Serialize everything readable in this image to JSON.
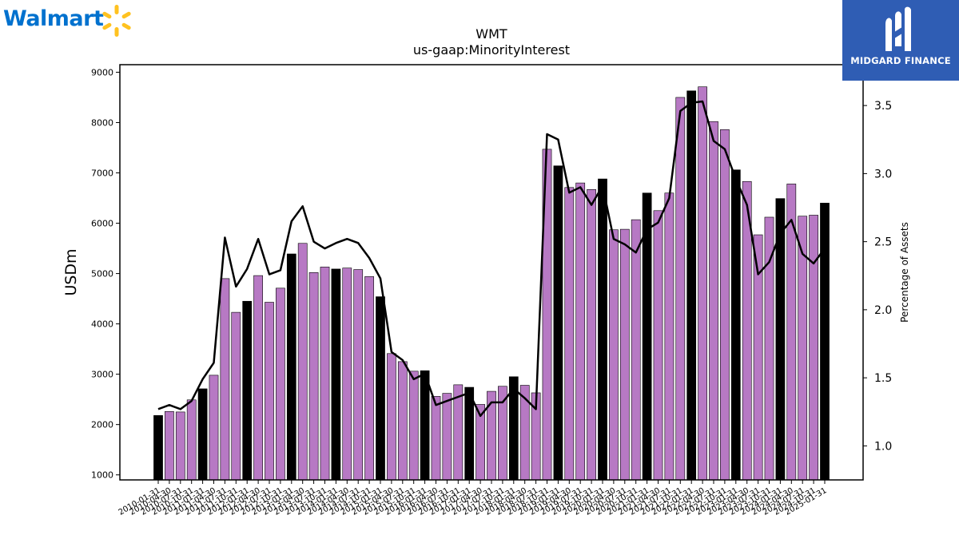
{
  "logos": {
    "walmart_text": "Walmart",
    "midgard_text": "MIDGARD FINANCE"
  },
  "colors": {
    "bar_quarter": "#b779c4",
    "bar_fiscal_year_end": "#000000",
    "line": "#000000",
    "walmart_blue": "#0071ce",
    "walmart_spark": "#ffc220",
    "midgard_bg": "#2f5db4"
  },
  "chart_data": {
    "type": "bar",
    "title": "WMT",
    "subtitle": "us-gaap:MinorityInterest",
    "ylabel": "USDm",
    "y2label": "Percentage of Assets",
    "ylim": [
      900,
      9150
    ],
    "y2lim": [
      0.75,
      3.8
    ],
    "yticks": [
      1000,
      2000,
      3000,
      4000,
      5000,
      6000,
      7000,
      8000,
      9000
    ],
    "y2ticks": [
      1.0,
      1.5,
      2.0,
      2.5,
      3.0,
      3.5
    ],
    "categories": [
      "2010-01-31",
      "2010-04-30",
      "2010-07-31",
      "2010-10-31",
      "2011-01-31",
      "2011-04-30",
      "2011-07-31",
      "2011-10-31",
      "2012-01-31",
      "2012-04-30",
      "2012-07-31",
      "2012-10-31",
      "2013-01-31",
      "2013-04-30",
      "2013-07-31",
      "2013-10-31",
      "2014-01-31",
      "2014-04-30",
      "2014-07-31",
      "2014-10-31",
      "2015-01-31",
      "2015-04-30",
      "2015-07-31",
      "2015-10-31",
      "2016-01-31",
      "2016-04-30",
      "2016-07-31",
      "2016-10-31",
      "2017-01-31",
      "2017-04-30",
      "2017-07-31",
      "2017-10-31",
      "2018-01-31",
      "2018-04-30",
      "2018-07-31",
      "2018-10-31",
      "2019-01-31",
      "2019-04-30",
      "2019-07-31",
      "2019-10-31",
      "2020-01-31",
      "2020-04-30",
      "2020-07-31",
      "2020-10-31",
      "2021-01-31",
      "2021-04-30",
      "2021-07-31",
      "2021-10-31",
      "2022-01-31",
      "2022-04-30",
      "2022-07-31",
      "2022-10-31",
      "2023-01-31",
      "2023-04-30",
      "2023-07-31",
      "2023-10-31",
      "2024-01-31",
      "2024-04-30",
      "2024-07-31",
      "2024-10-31",
      "2025-01-31"
    ],
    "fiscal_year_end": [
      true,
      false,
      false,
      false,
      true,
      false,
      false,
      false,
      true,
      false,
      false,
      false,
      true,
      false,
      false,
      false,
      true,
      false,
      false,
      false,
      true,
      false,
      false,
      false,
      true,
      false,
      false,
      false,
      true,
      false,
      false,
      false,
      true,
      false,
      false,
      false,
      true,
      false,
      false,
      false,
      true,
      false,
      false,
      false,
      true,
      false,
      false,
      false,
      true,
      false,
      false,
      false,
      true,
      false,
      false,
      false,
      true,
      false,
      false,
      false,
      true
    ],
    "values": [
      2180,
      2260,
      2250,
      2490,
      2710,
      2980,
      4900,
      4230,
      4450,
      4960,
      4430,
      4710,
      5390,
      5600,
      5020,
      5130,
      5090,
      5110,
      5080,
      4940,
      4540,
      3410,
      3250,
      3060,
      3070,
      2560,
      2620,
      2790,
      2740,
      2400,
      2660,
      2760,
      2950,
      2780,
      2630,
      7470,
      7140,
      6710,
      6800,
      6670,
      6880,
      5870,
      5880,
      6070,
      6600,
      6250,
      6600,
      8500,
      8630,
      8710,
      8020,
      7860,
      7060,
      6830,
      5770,
      6120,
      6490,
      6780,
      6140,
      6160,
      6400
    ],
    "series": [
      {
        "type": "line",
        "axis": "right",
        "values": [
          1.27,
          1.3,
          1.27,
          1.33,
          1.49,
          1.61,
          2.53,
          2.17,
          2.3,
          2.52,
          2.26,
          2.29,
          2.65,
          2.76,
          2.5,
          2.45,
          2.49,
          2.52,
          2.49,
          2.38,
          2.23,
          1.69,
          1.63,
          1.49,
          1.53,
          1.3,
          1.33,
          1.36,
          1.39,
          1.22,
          1.32,
          1.32,
          1.42,
          1.35,
          1.27,
          3.29,
          3.25,
          2.86,
          2.9,
          2.77,
          2.91,
          2.52,
          2.48,
          2.42,
          2.59,
          2.64,
          2.82,
          3.46,
          3.52,
          3.53,
          3.24,
          3.18,
          2.96,
          2.77,
          2.26,
          2.35,
          2.56,
          2.66,
          2.41,
          2.34,
          2.45
        ]
      }
    ],
    "grid": false,
    "legend": "none"
  }
}
